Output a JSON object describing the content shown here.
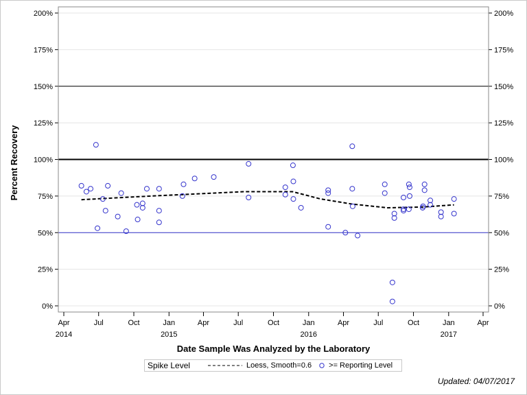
{
  "chart_data": {
    "type": "scatter",
    "xlabel": "Date Sample Was Analyzed by the Laboratory",
    "ylabel": "Percent Recovery",
    "xlim": [
      "2014-03-20",
      "2017-04-20"
    ],
    "ylim": [
      0,
      200
    ],
    "y_ticks": [
      "0%",
      "25%",
      "50%",
      "75%",
      "100%",
      "125%",
      "150%",
      "175%",
      "200%"
    ],
    "y_tick_values": [
      0,
      25,
      50,
      75,
      100,
      125,
      150,
      175,
      200
    ],
    "x_ticks": [
      {
        "date": "2014-04-01",
        "label": "Apr",
        "year": "2014"
      },
      {
        "date": "2014-07-01",
        "label": "Jul",
        "year": ""
      },
      {
        "date": "2014-10-01",
        "label": "Oct",
        "year": ""
      },
      {
        "date": "2015-01-01",
        "label": "Jan",
        "year": "2015"
      },
      {
        "date": "2015-04-01",
        "label": "Apr",
        "year": ""
      },
      {
        "date": "2015-07-01",
        "label": "Jul",
        "year": ""
      },
      {
        "date": "2015-10-01",
        "label": "Oct",
        "year": ""
      },
      {
        "date": "2016-01-01",
        "label": "Jan",
        "year": "2016"
      },
      {
        "date": "2016-04-01",
        "label": "Apr",
        "year": ""
      },
      {
        "date": "2016-07-01",
        "label": "Jul",
        "year": ""
      },
      {
        "date": "2016-10-01",
        "label": "Oct",
        "year": ""
      },
      {
        "date": "2017-01-01",
        "label": "Jan",
        "year": "2017"
      },
      {
        "date": "2017-04-01",
        "label": "Apr",
        "year": ""
      }
    ],
    "grid": true,
    "reference_lines": [
      {
        "y": 150,
        "color": "#000000",
        "weight": "thin"
      },
      {
        "y": 100,
        "color": "#000000",
        "weight": "thick"
      },
      {
        "y": 50,
        "color": "#3333cc",
        "weight": "thin"
      }
    ],
    "series": [
      {
        "name": ">= Reporting Level",
        "marker": "open-circle",
        "color": "#3333cc",
        "points": [
          [
            "2014-05-17",
            82
          ],
          [
            "2014-05-30",
            78
          ],
          [
            "2014-06-10",
            80
          ],
          [
            "2014-06-24",
            110
          ],
          [
            "2014-06-28",
            53
          ],
          [
            "2014-07-12",
            73
          ],
          [
            "2014-07-19",
            65
          ],
          [
            "2014-07-25",
            82
          ],
          [
            "2014-08-20",
            61
          ],
          [
            "2014-08-29",
            77
          ],
          [
            "2014-09-11",
            51
          ],
          [
            "2014-10-09",
            69
          ],
          [
            "2014-10-11",
            59
          ],
          [
            "2014-10-24",
            70
          ],
          [
            "2014-10-24",
            67
          ],
          [
            "2014-11-04",
            80
          ],
          [
            "2014-12-06",
            80
          ],
          [
            "2014-12-06",
            65
          ],
          [
            "2014-12-06",
            57
          ],
          [
            "2015-02-05",
            75
          ],
          [
            "2015-02-08",
            83
          ],
          [
            "2015-03-09",
            87
          ],
          [
            "2015-04-28",
            88
          ],
          [
            "2015-07-28",
            97
          ],
          [
            "2015-07-28",
            74
          ],
          [
            "2015-11-01",
            81
          ],
          [
            "2015-11-01",
            76
          ],
          [
            "2015-11-21",
            96
          ],
          [
            "2015-11-22",
            85
          ],
          [
            "2015-11-22",
            73
          ],
          [
            "2015-12-12",
            67
          ],
          [
            "2016-02-21",
            79
          ],
          [
            "2016-02-21",
            77
          ],
          [
            "2016-02-21",
            54
          ],
          [
            "2016-04-06",
            50
          ],
          [
            "2016-04-24",
            109
          ],
          [
            "2016-04-24",
            80
          ],
          [
            "2016-04-25",
            68
          ],
          [
            "2016-05-08",
            48
          ],
          [
            "2016-07-18",
            83
          ],
          [
            "2016-07-18",
            77
          ],
          [
            "2016-08-07",
            16
          ],
          [
            "2016-08-07",
            3
          ],
          [
            "2016-08-12",
            63
          ],
          [
            "2016-08-12",
            60
          ],
          [
            "2016-09-05",
            74
          ],
          [
            "2016-09-05",
            66
          ],
          [
            "2016-09-05",
            65
          ],
          [
            "2016-09-19",
            83
          ],
          [
            "2016-09-21",
            81
          ],
          [
            "2016-09-21",
            75
          ],
          [
            "2016-09-19",
            66
          ],
          [
            "2016-10-25",
            67
          ],
          [
            "2016-10-26",
            68
          ],
          [
            "2016-10-30",
            79
          ],
          [
            "2016-10-30",
            83
          ],
          [
            "2016-11-14",
            72
          ],
          [
            "2016-11-14",
            69
          ],
          [
            "2016-12-12",
            64
          ],
          [
            "2016-12-12",
            61
          ],
          [
            "2017-01-15",
            73
          ],
          [
            "2017-01-15",
            63
          ]
        ]
      },
      {
        "name": "Loess, Smooth=0.6",
        "line": "dashed",
        "color": "#000000",
        "points": [
          [
            "2014-05-17",
            72.5
          ],
          [
            "2014-10-09",
            74.5
          ],
          [
            "2015-02-05",
            76
          ],
          [
            "2015-07-15",
            78
          ],
          [
            "2015-11-20",
            78
          ],
          [
            "2016-02-01",
            73
          ],
          [
            "2016-04-24",
            69.5
          ],
          [
            "2016-07-25",
            67
          ],
          [
            "2016-10-25",
            67.5
          ],
          [
            "2017-01-15",
            69
          ]
        ]
      }
    ],
    "legend": {
      "title": "Spike Level",
      "placement": "bottom"
    }
  },
  "footer": {
    "updated": "Updated: 04/07/2017"
  }
}
